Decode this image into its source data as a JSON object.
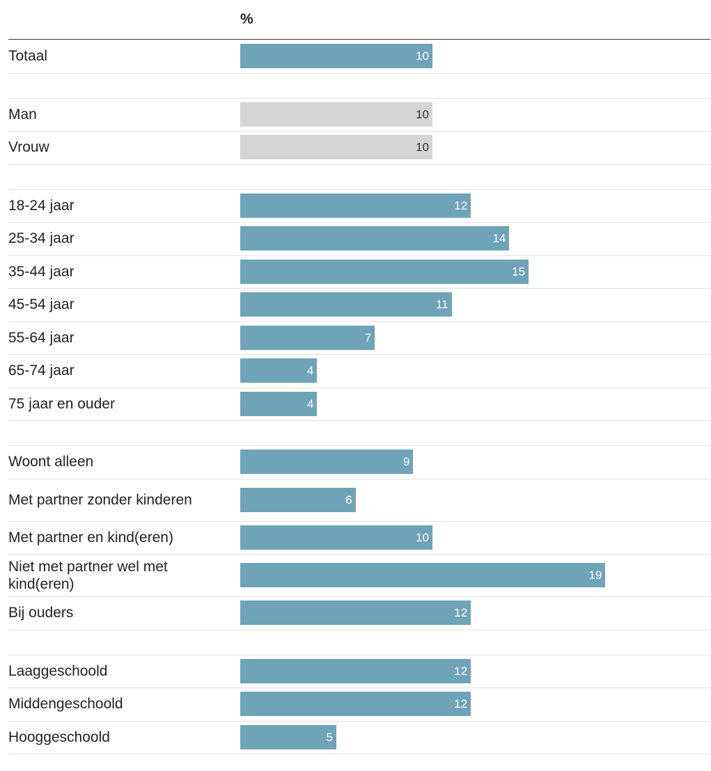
{
  "chart_data": {
    "type": "bar",
    "orientation": "horizontal",
    "value_header": "%",
    "colors": {
      "default": "#6fa3b8",
      "highlight_grey": "#d5d5d5",
      "label_on_default": "#ffffff",
      "label_on_grey": "#333333"
    },
    "groups": [
      {
        "rows": [
          {
            "label": "Totaal",
            "value": 10,
            "color": "default"
          }
        ]
      },
      {
        "rows": [
          {
            "label": "Man",
            "value": 10,
            "color": "highlight_grey"
          },
          {
            "label": "Vrouw",
            "value": 10,
            "color": "highlight_grey"
          }
        ]
      },
      {
        "rows": [
          {
            "label": "18-24 jaar",
            "value": 12,
            "color": "default"
          },
          {
            "label": "25-34 jaar",
            "value": 14,
            "color": "default"
          },
          {
            "label": "35-44 jaar",
            "value": 15,
            "color": "default"
          },
          {
            "label": "45-54 jaar",
            "value": 11,
            "color": "default"
          },
          {
            "label": "55-64 jaar",
            "value": 7,
            "color": "default"
          },
          {
            "label": "65-74 jaar",
            "value": 4,
            "color": "default"
          },
          {
            "label": "75 jaar en ouder",
            "value": 4,
            "color": "default"
          }
        ]
      },
      {
        "rows": [
          {
            "label": "Woont alleen",
            "value": 9,
            "color": "default"
          },
          {
            "label": "Met partner zonder kinderen",
            "value": 6,
            "color": "default"
          },
          {
            "label": "Met partner en kind(eren)",
            "value": 10,
            "color": "default"
          },
          {
            "label": "Niet met partner wel met kind(eren)",
            "value": 19,
            "color": "default"
          },
          {
            "label": "Bij ouders",
            "value": 12,
            "color": "default"
          }
        ]
      },
      {
        "rows": [
          {
            "label": "Laaggeschoold",
            "value": 12,
            "color": "default"
          },
          {
            "label": "Middengeschoold",
            "value": 12,
            "color": "default"
          },
          {
            "label": "Hooggeschoold",
            "value": 5,
            "color": "default"
          }
        ]
      }
    ]
  }
}
